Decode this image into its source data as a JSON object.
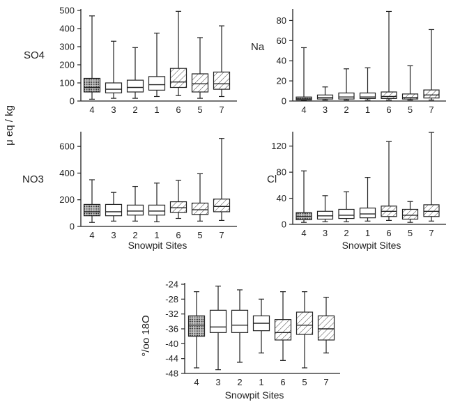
{
  "colors": {
    "ink": "#222222",
    "paper": "#ffffff"
  },
  "shared_ylabel": "μ eq / kg",
  "chart_data": [
    {
      "type": "box",
      "title": "",
      "panel_label": "SO4",
      "xlabel": "",
      "ylabel": "",
      "ylim": [
        0,
        500
      ],
      "yticks": [
        0,
        100,
        200,
        300,
        400,
        500
      ],
      "categories": [
        "4",
        "3",
        "2",
        "1",
        "6",
        "5",
        "7"
      ],
      "boxes": [
        {
          "site": "4",
          "min": 10,
          "q1": 50,
          "median": 75,
          "q3": 125,
          "max": 470,
          "pattern": "dots"
        },
        {
          "site": "3",
          "min": 15,
          "q1": 45,
          "median": 65,
          "q3": 100,
          "max": 330,
          "pattern": "none"
        },
        {
          "site": "2",
          "min": 15,
          "q1": 50,
          "median": 75,
          "q3": 115,
          "max": 295,
          "pattern": "none"
        },
        {
          "site": "1",
          "min": 25,
          "q1": 60,
          "median": 90,
          "q3": 135,
          "max": 375,
          "pattern": "none"
        },
        {
          "site": "6",
          "min": 30,
          "q1": 75,
          "median": 105,
          "q3": 180,
          "max": 495,
          "pattern": "hatch"
        },
        {
          "site": "5",
          "min": 15,
          "q1": 50,
          "median": 95,
          "q3": 150,
          "max": 350,
          "pattern": "hatch"
        },
        {
          "site": "7",
          "min": 25,
          "q1": 65,
          "median": 95,
          "q3": 160,
          "max": 415,
          "pattern": "hatch"
        }
      ]
    },
    {
      "type": "box",
      "title": "",
      "panel_label": "Na",
      "xlabel": "",
      "ylabel": "",
      "ylim": [
        0,
        90
      ],
      "yticks": [
        0,
        20,
        40,
        60,
        80
      ],
      "categories": [
        "4",
        "3",
        "2",
        "1",
        "6",
        "5",
        "7"
      ],
      "boxes": [
        {
          "site": "4",
          "min": 0.5,
          "q1": 1,
          "median": 2,
          "q3": 4,
          "max": 53,
          "pattern": "dots"
        },
        {
          "site": "3",
          "min": 1,
          "q1": 2,
          "median": 3.5,
          "q3": 6,
          "max": 14,
          "pattern": "none"
        },
        {
          "site": "2",
          "min": 1,
          "q1": 2,
          "median": 4,
          "q3": 8,
          "max": 32,
          "pattern": "none"
        },
        {
          "site": "1",
          "min": 1,
          "q1": 2.5,
          "median": 4,
          "q3": 8,
          "max": 33,
          "pattern": "none"
        },
        {
          "site": "6",
          "min": 1,
          "q1": 2.5,
          "median": 4.5,
          "q3": 9,
          "max": 89,
          "pattern": "hatch"
        },
        {
          "site": "5",
          "min": 1,
          "q1": 2,
          "median": 3.5,
          "q3": 7,
          "max": 35,
          "pattern": "hatch"
        },
        {
          "site": "7",
          "min": 1,
          "q1": 3,
          "median": 6,
          "q3": 11,
          "max": 71,
          "pattern": "hatch"
        }
      ]
    },
    {
      "type": "box",
      "title": "",
      "panel_label": "NO3",
      "xlabel": "Snowpit Sites",
      "ylabel": "",
      "ylim": [
        0,
        700
      ],
      "yticks": [
        0,
        200,
        400,
        600
      ],
      "categories": [
        "4",
        "3",
        "2",
        "1",
        "6",
        "5",
        "7"
      ],
      "boxes": [
        {
          "site": "4",
          "min": 30,
          "q1": 80,
          "median": 110,
          "q3": 165,
          "max": 350,
          "pattern": "dots"
        },
        {
          "site": "3",
          "min": 40,
          "q1": 80,
          "median": 110,
          "q3": 165,
          "max": 255,
          "pattern": "none"
        },
        {
          "site": "2",
          "min": 40,
          "q1": 85,
          "median": 115,
          "q3": 160,
          "max": 300,
          "pattern": "none"
        },
        {
          "site": "1",
          "min": 35,
          "q1": 85,
          "median": 115,
          "q3": 160,
          "max": 325,
          "pattern": "none"
        },
        {
          "site": "6",
          "min": 60,
          "q1": 105,
          "median": 140,
          "q3": 185,
          "max": 345,
          "pattern": "hatch"
        },
        {
          "site": "5",
          "min": 40,
          "q1": 90,
          "median": 125,
          "q3": 175,
          "max": 395,
          "pattern": "hatch"
        },
        {
          "site": "7",
          "min": 45,
          "q1": 110,
          "median": 150,
          "q3": 205,
          "max": 660,
          "pattern": "hatch"
        }
      ]
    },
    {
      "type": "box",
      "title": "",
      "panel_label": "Cl",
      "xlabel": "Snowpit Sites",
      "ylabel": "",
      "ylim": [
        0,
        140
      ],
      "yticks": [
        0,
        40,
        80,
        120
      ],
      "categories": [
        "4",
        "3",
        "2",
        "1",
        "6",
        "5",
        "7"
      ],
      "boxes": [
        {
          "site": "4",
          "min": 3,
          "q1": 7,
          "median": 12,
          "q3": 18,
          "max": 82,
          "pattern": "dots"
        },
        {
          "site": "3",
          "min": 4,
          "q1": 8,
          "median": 13,
          "q3": 20,
          "max": 44,
          "pattern": "none"
        },
        {
          "site": "2",
          "min": 4,
          "q1": 9,
          "median": 14,
          "q3": 23,
          "max": 50,
          "pattern": "none"
        },
        {
          "site": "1",
          "min": 5,
          "q1": 10,
          "median": 16,
          "q3": 25,
          "max": 72,
          "pattern": "none"
        },
        {
          "site": "6",
          "min": 6,
          "q1": 12,
          "median": 20,
          "q3": 28,
          "max": 127,
          "pattern": "hatch"
        },
        {
          "site": "5",
          "min": 3,
          "q1": 8,
          "median": 14,
          "q3": 23,
          "max": 35,
          "pattern": "hatch"
        },
        {
          "site": "7",
          "min": 5,
          "q1": 12,
          "median": 20,
          "q3": 30,
          "max": 141,
          "pattern": "hatch"
        }
      ]
    },
    {
      "type": "box",
      "title": "",
      "panel_label": "°/oo 18O",
      "xlabel": "Snowpit Sites",
      "ylabel": "",
      "ylim": [
        -48,
        -24
      ],
      "yticks": [
        -24,
        -28,
        -32,
        -36,
        -40,
        -44,
        -48
      ],
      "categories": [
        "4",
        "3",
        "2",
        "1",
        "6",
        "5",
        "7"
      ],
      "boxes": [
        {
          "site": "4",
          "min": -46.5,
          "q1": -38,
          "median": -35,
          "q3": -32.5,
          "max": -26,
          "pattern": "dots"
        },
        {
          "site": "3",
          "min": -47,
          "q1": -37,
          "median": -35.5,
          "q3": -31,
          "max": -24.5,
          "pattern": "none"
        },
        {
          "site": "2",
          "min": -45,
          "q1": -37,
          "median": -35,
          "q3": -31,
          "max": -25.5,
          "pattern": "none"
        },
        {
          "site": "1",
          "min": -42.5,
          "q1": -36.5,
          "median": -34.5,
          "q3": -32.5,
          "max": -28,
          "pattern": "none"
        },
        {
          "site": "6",
          "min": -44.5,
          "q1": -39,
          "median": -37,
          "q3": -33.5,
          "max": -26,
          "pattern": "hatch"
        },
        {
          "site": "5",
          "min": -46.5,
          "q1": -37.5,
          "median": -35,
          "q3": -31.5,
          "max": -26,
          "pattern": "hatch"
        },
        {
          "site": "7",
          "min": -42.5,
          "q1": -39,
          "median": -36,
          "q3": -32.5,
          "max": -27.5,
          "pattern": "hatch"
        }
      ]
    }
  ]
}
